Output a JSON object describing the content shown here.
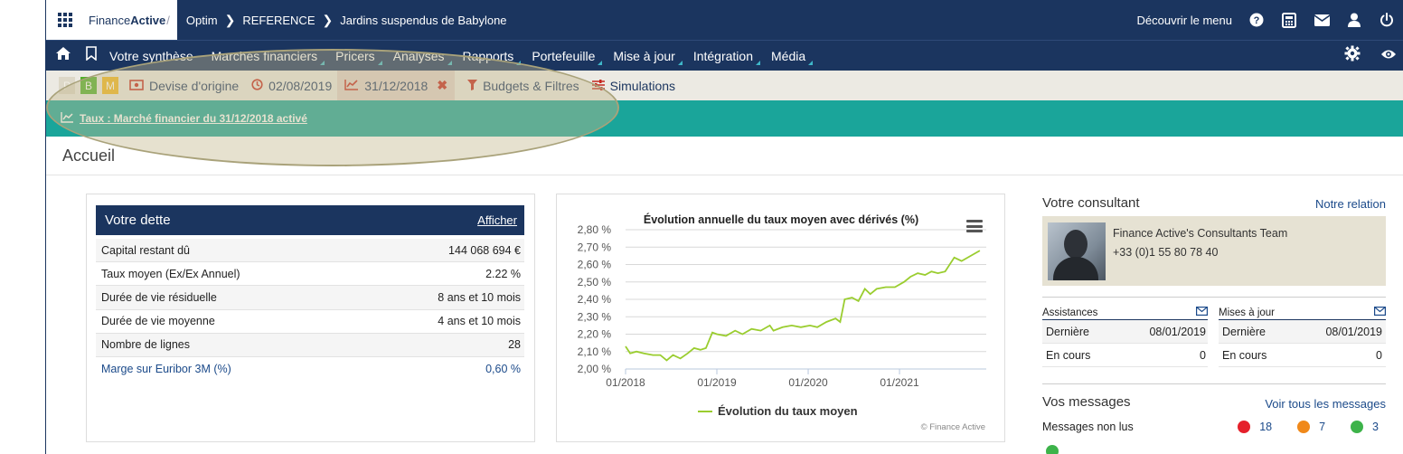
{
  "topbar": {
    "logo_finance": "Finance",
    "logo_active": "Active",
    "crumbs": [
      "Optim",
      "REFERENCE",
      "Jardins suspendus de Babylone"
    ],
    "discover_menu": "Découvrir le menu"
  },
  "menu": {
    "items": [
      "Votre synthèse",
      "Marchés financiers",
      "Pricers",
      "Analyses",
      "Rapports",
      "Portefeuille",
      "Mise à jour",
      "Intégration",
      "Média"
    ]
  },
  "filters": {
    "pills": [
      "P",
      "B",
      "M"
    ],
    "devise": "Devise d'origine",
    "date1": "02/08/2019",
    "date2": "31/12/2018",
    "budgets": "Budgets & Filtres",
    "simulations": "Simulations"
  },
  "notice": {
    "text": "Taux : Marché financier du 31/12/2018 activé"
  },
  "page": {
    "title": "Accueil"
  },
  "dette": {
    "title": "Votre dette",
    "action": "Afficher",
    "rows": [
      {
        "label": "Capital restant dû",
        "value": "144 068 694 €"
      },
      {
        "label": "Taux moyen (Ex/Ex Annuel)",
        "value": "2.22 %"
      },
      {
        "label": "Durée de vie résiduelle",
        "value": "8 ans et 10 mois"
      },
      {
        "label": "Durée de vie moyenne",
        "value": "4 ans et 10 mois"
      },
      {
        "label": "Nombre de lignes",
        "value": "28"
      },
      {
        "label": "Marge sur Euribor 3M (%)",
        "value": "0,60 %"
      }
    ]
  },
  "chart_data": {
    "type": "line",
    "title": "Évolution annuelle du taux moyen avec dérivés (%)",
    "credit": "© Finance Active",
    "y_ticks": [
      "2,00 %",
      "2,10 %",
      "2,20 %",
      "2,30 %",
      "2,40 %",
      "2,50 %",
      "2,60 %",
      "2,70 %",
      "2,80 %"
    ],
    "x_ticks": [
      "01/2018",
      "01/2019",
      "01/2020",
      "01/2021"
    ],
    "ylim": [
      2.0,
      2.8
    ],
    "xlim": [
      2018.0,
      2021.95
    ],
    "legend": "top? no - bottom-center",
    "series": [
      {
        "name": "Évolution du taux moyen",
        "color": "#9acd2f",
        "points": [
          [
            2018.0,
            2.13
          ],
          [
            2018.05,
            2.09
          ],
          [
            2018.12,
            2.1
          ],
          [
            2018.2,
            2.09
          ],
          [
            2018.3,
            2.08
          ],
          [
            2018.38,
            2.08
          ],
          [
            2018.45,
            2.05
          ],
          [
            2018.52,
            2.08
          ],
          [
            2018.6,
            2.06
          ],
          [
            2018.68,
            2.09
          ],
          [
            2018.75,
            2.12
          ],
          [
            2018.82,
            2.11
          ],
          [
            2018.88,
            2.12
          ],
          [
            2018.95,
            2.21
          ],
          [
            2019.0,
            2.2
          ],
          [
            2019.1,
            2.19
          ],
          [
            2019.2,
            2.22
          ],
          [
            2019.28,
            2.2
          ],
          [
            2019.38,
            2.23
          ],
          [
            2019.48,
            2.22
          ],
          [
            2019.58,
            2.25
          ],
          [
            2019.62,
            2.22
          ],
          [
            2019.72,
            2.24
          ],
          [
            2019.82,
            2.25
          ],
          [
            2019.92,
            2.24
          ],
          [
            2020.02,
            2.25
          ],
          [
            2020.1,
            2.24
          ],
          [
            2020.2,
            2.27
          ],
          [
            2020.3,
            2.29
          ],
          [
            2020.35,
            2.27
          ],
          [
            2020.4,
            2.4
          ],
          [
            2020.48,
            2.41
          ],
          [
            2020.55,
            2.39
          ],
          [
            2020.62,
            2.46
          ],
          [
            2020.68,
            2.43
          ],
          [
            2020.75,
            2.46
          ],
          [
            2020.85,
            2.47
          ],
          [
            2020.95,
            2.47
          ],
          [
            2021.05,
            2.5
          ],
          [
            2021.12,
            2.53
          ],
          [
            2021.2,
            2.55
          ],
          [
            2021.28,
            2.54
          ],
          [
            2021.35,
            2.56
          ],
          [
            2021.42,
            2.55
          ],
          [
            2021.5,
            2.56
          ],
          [
            2021.6,
            2.64
          ],
          [
            2021.68,
            2.62
          ],
          [
            2021.78,
            2.65
          ],
          [
            2021.88,
            2.68
          ]
        ]
      }
    ]
  },
  "consultant": {
    "title": "Votre consultant",
    "link": "Notre relation",
    "name": "Finance Active's Consultants Team",
    "phone": "+33 (0)1 55 80 78 40"
  },
  "assistances": {
    "title": "Assistances",
    "rows": [
      {
        "label": "Dernière",
        "value": "08/01/2019"
      },
      {
        "label": "En cours",
        "value": "0"
      }
    ]
  },
  "mises_a_jour": {
    "title": "Mises à jour",
    "rows": [
      {
        "label": "Dernière",
        "value": "08/01/2019"
      },
      {
        "label": "En cours",
        "value": "0"
      }
    ]
  },
  "messages": {
    "title": "Vos messages",
    "link": "Voir tous les messages",
    "unread_label": "Messages non lus",
    "counts": [
      {
        "value": "18",
        "color": "#e5202b"
      },
      {
        "value": "7",
        "color": "#f0891a"
      },
      {
        "value": "3",
        "color": "#3db34a"
      }
    ]
  }
}
